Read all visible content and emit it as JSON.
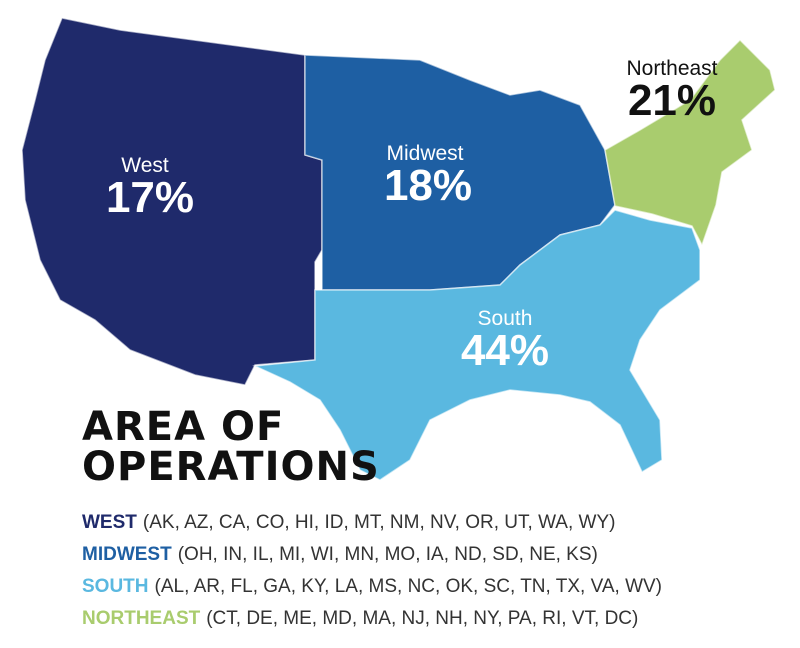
{
  "title": [
    "AREA OF",
    "OPERATIONS"
  ],
  "regions": [
    {
      "name": "West",
      "share": "17%",
      "key": "WEST",
      "states": "(AK, AZ, CA, CO, HI, ID, MT, NM, NV, OR, UT, WA, WY)",
      "color": "#1f2a6b",
      "label_color": "#ffffff"
    },
    {
      "name": "Midwest",
      "share": "18%",
      "key": "MIDWEST",
      "states": "(OH, IN, IL, MI, WI, MN, MO, IA, ND, SD, NE, KS)",
      "color": "#1e5fa3",
      "label_color": "#ffffff"
    },
    {
      "name": "South",
      "share": "44%",
      "key": "SOUTH",
      "states": "(AL, AR, FL, GA, KY, LA, MS, NC, OK, SC, TN, TX, VA, WV)",
      "color": "#5ab8e0",
      "label_color": "#ffffff"
    },
    {
      "name": "Northeast",
      "share": "21%",
      "key": "NORTHEAST",
      "states": "(CT, DE, ME, MD, MA, NJ, NH, NY, PA, RI, VT, DC)",
      "color": "#a9cc6e",
      "label_color": "#111111"
    }
  ]
}
